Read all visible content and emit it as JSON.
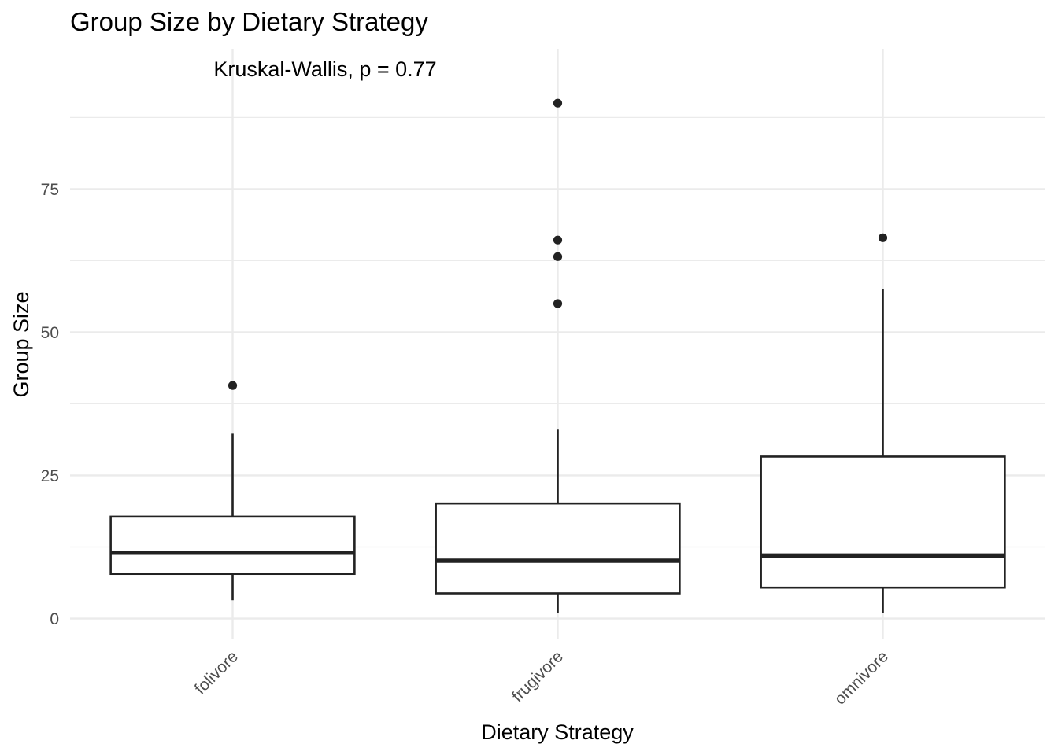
{
  "chart_data": {
    "type": "box",
    "title": "Group Size by Dietary Strategy",
    "annotation": "Kruskal-Wallis, p = 0.77",
    "xlabel": "Dietary Strategy",
    "ylabel": "Group Size",
    "ylim": [
      -3.5,
      99.5
    ],
    "yticks": [
      0,
      25,
      50,
      75
    ],
    "ytick_labels": [
      "0",
      "25",
      "50",
      "75"
    ],
    "grid": true,
    "categories": [
      "folivore",
      "frugivore",
      "omnivore"
    ],
    "boxes": [
      {
        "category": "folivore",
        "whisker_low": 3.2,
        "q1": 7.8,
        "median": 11.5,
        "q3": 17.8,
        "whisker_high": 32.3,
        "outliers": [
          40.7
        ]
      },
      {
        "category": "frugivore",
        "whisker_low": 1.0,
        "q1": 4.4,
        "median": 10.1,
        "q3": 20.1,
        "whisker_high": 33.0,
        "outliers": [
          55.0,
          63.2,
          66.1,
          90.0
        ]
      },
      {
        "category": "omnivore",
        "whisker_low": 1.0,
        "q1": 5.4,
        "median": 11.0,
        "q3": 28.3,
        "whisker_high": 57.5,
        "outliers": [
          66.5
        ]
      }
    ],
    "colors": {
      "box_line": "#222222",
      "box_fill": "#ffffff",
      "grid": "#ebebeb",
      "tick_text": "#4d4d4d"
    }
  }
}
